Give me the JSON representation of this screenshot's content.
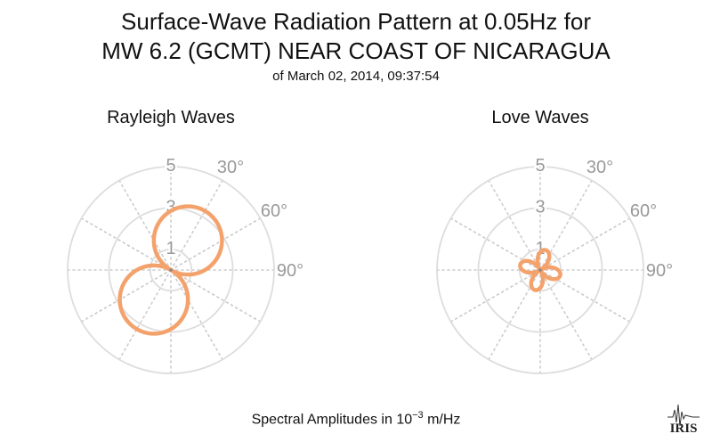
{
  "title_line1": "Surface-Wave Radiation Pattern at 0.05Hz for",
  "title_line2": "MW 6.2 (GCMT) NEAR COAST OF NICARAGUA",
  "subtitle": "of March 02, 2014, 09:37:54",
  "footer": {
    "prefix": "Spectral Amplitudes in ",
    "base": "10",
    "exponent": "−3",
    "unit": " m/Hz"
  },
  "logo_text": "IRIS",
  "colors": {
    "pattern": "#f4a26c",
    "grid": "#dddddd",
    "radial": "#cccccc",
    "tick_text": "#999999"
  },
  "chart_data": [
    {
      "type": "polar",
      "title": "Rayleigh Waves",
      "r_ticks": [
        1,
        3,
        5
      ],
      "r_tick_labels": [
        "1",
        "3",
        "5"
      ],
      "rmax": 5,
      "theta_ticks_deg": [
        30,
        60,
        90
      ],
      "theta_tick_labels": [
        "30°",
        "60°",
        "90°"
      ],
      "angular_grid_deg": [
        0,
        30,
        60,
        90,
        120,
        150,
        180,
        210,
        240,
        270,
        300,
        330
      ],
      "grid": true,
      "pattern": {
        "model": "two-lobe",
        "max_amplitude": 3.3,
        "lobe_azimuth_deg": 30
      }
    },
    {
      "type": "polar",
      "title": "Love Waves",
      "r_ticks": [
        1,
        3,
        5
      ],
      "r_tick_labels": [
        "1",
        "3",
        "5"
      ],
      "rmax": 5,
      "theta_ticks_deg": [
        30,
        60,
        90
      ],
      "theta_tick_labels": [
        "30°",
        "60°",
        "90°"
      ],
      "angular_grid_deg": [
        0,
        30,
        60,
        90,
        120,
        150,
        180,
        210,
        240,
        270,
        300,
        330
      ],
      "grid": true,
      "pattern": {
        "model": "four-lobe",
        "max_amplitude": 1.0,
        "lobe_azimuth_deg": 150
      }
    }
  ]
}
